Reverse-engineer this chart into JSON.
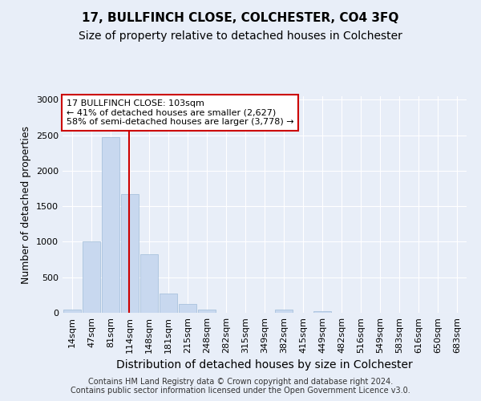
{
  "title1": "17, BULLFINCH CLOSE, COLCHESTER, CO4 3FQ",
  "title2": "Size of property relative to detached houses in Colchester",
  "xlabel": "Distribution of detached houses by size in Colchester",
  "ylabel": "Number of detached properties",
  "footer1": "Contains HM Land Registry data © Crown copyright and database right 2024.",
  "footer2": "Contains public sector information licensed under the Open Government Licence v3.0.",
  "annotation_line1": "17 BULLFINCH CLOSE: 103sqm",
  "annotation_line2": "← 41% of detached houses are smaller (2,627)",
  "annotation_line3": "58% of semi-detached houses are larger (3,778) →",
  "bar_categories": [
    "14sqm",
    "47sqm",
    "81sqm",
    "114sqm",
    "148sqm",
    "181sqm",
    "215sqm",
    "248sqm",
    "282sqm",
    "315sqm",
    "349sqm",
    "382sqm",
    "415sqm",
    "449sqm",
    "482sqm",
    "516sqm",
    "549sqm",
    "583sqm",
    "616sqm",
    "650sqm",
    "683sqm"
  ],
  "bar_values": [
    50,
    1000,
    2475,
    1675,
    825,
    275,
    125,
    50,
    0,
    0,
    0,
    40,
    0,
    20,
    0,
    0,
    0,
    0,
    0,
    0,
    0
  ],
  "bar_color": "#c8d8ef",
  "bar_edge_color": "#a0bcd8",
  "property_line_x": 2.95,
  "property_line_color": "#cc0000",
  "ylim": [
    0,
    3050
  ],
  "yticks": [
    0,
    500,
    1000,
    1500,
    2000,
    2500,
    3000
  ],
  "background_color": "#e8eef8",
  "grid_color": "#ffffff",
  "annotation_box_color": "#ffffff",
  "annotation_box_edge_color": "#cc0000",
  "title1_fontsize": 11,
  "title2_fontsize": 10,
  "axis_label_fontsize": 9,
  "tick_fontsize": 8,
  "annotation_fontsize": 8,
  "footer_fontsize": 7
}
